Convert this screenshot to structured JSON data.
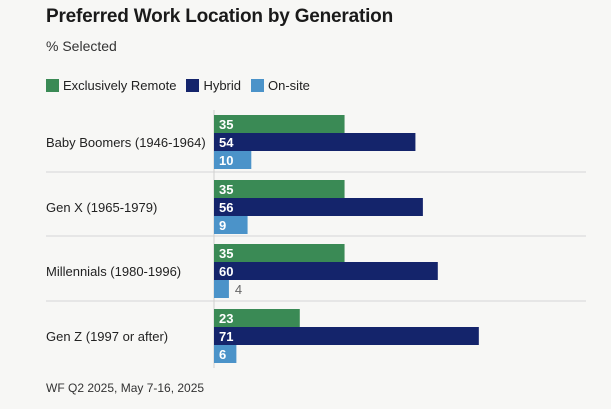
{
  "chart_data": {
    "type": "bar",
    "orientation": "horizontal",
    "title": "Preferred Work Location by Generation",
    "subtitle": "% Selected",
    "categories": [
      "Baby Boomers (1946-1964)",
      "Gen X (1965-1979)",
      "Millennials (1980-1996)",
      "Gen Z (1997 or after)"
    ],
    "series": [
      {
        "name": "Exclusively Remote",
        "color": "#3a8a55",
        "values": [
          35,
          35,
          35,
          23
        ]
      },
      {
        "name": "Hybrid",
        "color": "#14246b",
        "values": [
          54,
          56,
          60,
          71
        ]
      },
      {
        "name": "On-site",
        "color": "#4b93c9",
        "values": [
          10,
          9,
          4,
          6
        ]
      }
    ],
    "xlim": [
      0,
      100
    ],
    "legend_position": "top-left",
    "grid": false,
    "footnote": "WF Q2 2025, May 7-16, 2025"
  }
}
